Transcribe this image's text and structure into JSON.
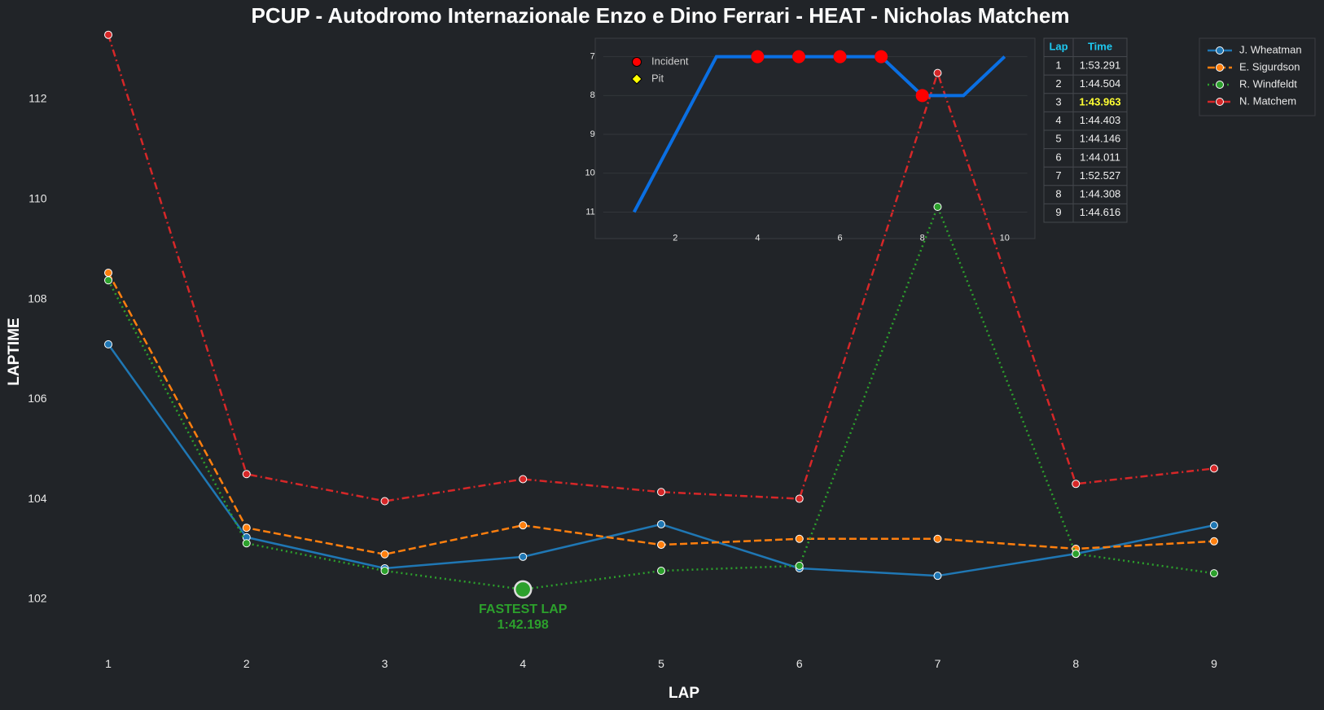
{
  "title": "PCUP - Autodromo Internazionale Enzo e Dino Ferrari - HEAT - Nicholas Matchem",
  "chart_data": [
    {
      "type": "line",
      "xlabel": "LAP",
      "ylabel": "LAPTIME",
      "x": [
        1,
        2,
        3,
        4,
        5,
        6,
        7,
        8,
        9
      ],
      "xlim": [
        0.65,
        9.3
      ],
      "xticks": [
        1,
        2,
        3,
        4,
        5,
        6,
        7,
        8,
        9
      ],
      "ylim": [
        101.1,
        113.4
      ],
      "yticks": [
        102,
        104,
        106,
        108,
        110,
        112
      ],
      "legend": "upper right",
      "series": [
        {
          "name": "J. Wheatman",
          "color": "#1f77b4",
          "dash": "solid",
          "values": [
            107.1,
            103.24,
            102.62,
            102.85,
            103.5,
            102.62,
            102.47,
            102.91,
            103.48
          ]
        },
        {
          "name": "E. Sigurdson",
          "color": "#ff7f0e",
          "dash": "dashed",
          "values": [
            108.53,
            103.43,
            102.9,
            103.48,
            103.09,
            103.21,
            103.21,
            103.01,
            103.16
          ]
        },
        {
          "name": "R. Windfeldt",
          "color": "#2ca02c",
          "dash": "dotted",
          "values": [
            108.38,
            103.12,
            102.57,
            102.198,
            102.57,
            102.67,
            109.85,
            102.91,
            102.52
          ]
        },
        {
          "name": "N. Matchem",
          "color": "#d62728",
          "dash": "dashdot",
          "values": [
            113.291,
            104.504,
            103.963,
            104.403,
            104.146,
            104.011,
            112.527,
            104.308,
            104.616
          ]
        }
      ],
      "annotation": {
        "lines": [
          "FASTEST LAP",
          "1:42.198"
        ],
        "x": 4,
        "y": 102.198,
        "color": "#2ca02c"
      }
    },
    {
      "type": "line",
      "x": [
        1,
        2,
        3,
        4,
        5,
        6,
        7,
        8,
        9,
        10
      ],
      "xlim": [
        0.25,
        10.55
      ],
      "xticks": [
        2,
        4,
        6,
        8,
        10
      ],
      "ylim": [
        11.3,
        6.65
      ],
      "yticks": [
        7,
        8,
        9,
        10,
        11
      ],
      "grid": true,
      "series": [
        {
          "color": "#0a6fe3",
          "values": [
            11,
            9,
            7,
            7,
            7,
            7,
            7,
            8,
            8,
            7
          ]
        }
      ],
      "markers": [
        {
          "name": "Incident",
          "color": "#ff0000",
          "x": [
            4,
            5,
            6,
            7,
            8
          ]
        },
        {
          "name": "Pit",
          "color": "#ffff00",
          "x": []
        }
      ]
    }
  ],
  "table": {
    "columns": [
      "Lap",
      "Time"
    ],
    "highlight_color": "#ffff33",
    "rows": [
      [
        1,
        "1:53.291"
      ],
      [
        2,
        "1:44.504"
      ],
      [
        3,
        "1:43.963"
      ],
      [
        4,
        "1:44.403"
      ],
      [
        5,
        "1:44.146"
      ],
      [
        6,
        "1:44.011"
      ],
      [
        7,
        "1:52.527"
      ],
      [
        8,
        "1:44.308"
      ],
      [
        9,
        "1:44.616"
      ]
    ]
  }
}
